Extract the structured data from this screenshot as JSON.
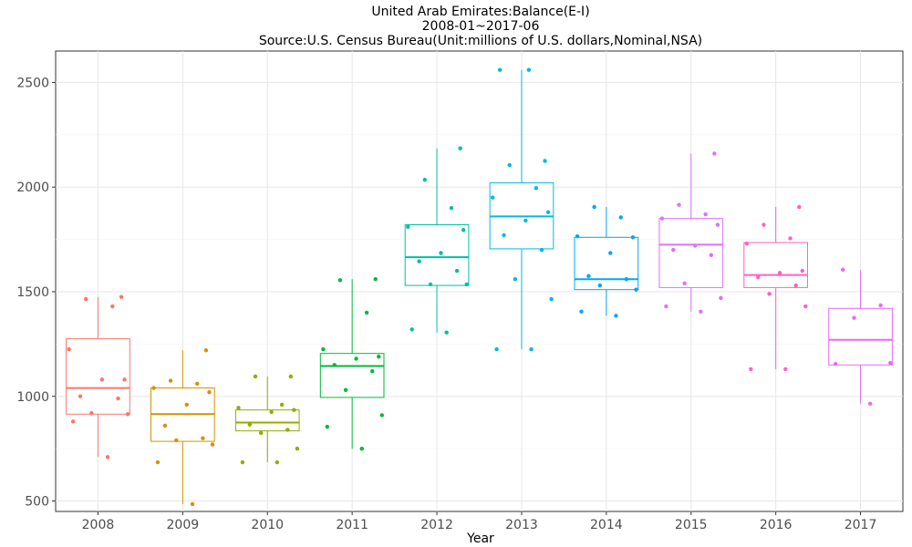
{
  "chart_data": {
    "type": "boxplot",
    "title": "United Arab Emirates:Balance(E-I)",
    "subtitle": "2008-01~2017-06",
    "source": "Source:U.S. Census Bureau(Unit:millions of U.S. dollars,Nominal,NSA)",
    "xlabel": "Year",
    "ylabel": "",
    "ylim": [
      450,
      2650
    ],
    "yticks": [
      500,
      1000,
      1500,
      2000,
      2500
    ],
    "grid": true,
    "legend": "none",
    "categories": [
      "2008",
      "2009",
      "2010",
      "2011",
      "2012",
      "2013",
      "2014",
      "2015",
      "2016",
      "2017"
    ],
    "colors": [
      "#F8766D",
      "#D39200",
      "#93AA00",
      "#00BA38",
      "#00C19F",
      "#00B9E3",
      "#00A6FF",
      "#DB72FB",
      "#FF61C3",
      "#E76BF3"
    ],
    "boxes": [
      {
        "category": "2008",
        "min": 710,
        "q1": 915,
        "median": 1040,
        "q3": 1275,
        "max": 1475,
        "points": [
          710,
          880,
          915,
          920,
          990,
          1000,
          1080,
          1080,
          1225,
          1430,
          1465,
          1475
        ]
      },
      {
        "category": "2009",
        "min": 485,
        "q1": 785,
        "median": 915,
        "q3": 1040,
        "max": 1220,
        "points": [
          485,
          685,
          770,
          790,
          800,
          860,
          960,
          1020,
          1040,
          1060,
          1075,
          1220
        ]
      },
      {
        "category": "2010",
        "min": 685,
        "q1": 835,
        "median": 875,
        "q3": 935,
        "max": 1095,
        "points": [
          685,
          685,
          750,
          825,
          840,
          865,
          925,
          935,
          945,
          960,
          1095,
          1095
        ]
      },
      {
        "category": "2011",
        "min": 750,
        "q1": 995,
        "median": 1145,
        "q3": 1205,
        "max": 1560,
        "points": [
          750,
          855,
          910,
          1030,
          1120,
          1150,
          1180,
          1190,
          1225,
          1400,
          1555,
          1560
        ]
      },
      {
        "category": "2012",
        "min": 1305,
        "q1": 1530,
        "median": 1665,
        "q3": 1820,
        "max": 2185,
        "points": [
          1305,
          1320,
          1535,
          1535,
          1600,
          1645,
          1685,
          1795,
          1810,
          1900,
          2035,
          2185
        ]
      },
      {
        "category": "2013",
        "min": 1225,
        "q1": 1705,
        "median": 1860,
        "q3": 2020,
        "max": 2560,
        "points": [
          1225,
          1225,
          1465,
          1560,
          1700,
          1770,
          1840,
          1880,
          1950,
          1995,
          2105,
          2125,
          2560,
          2560
        ]
      },
      {
        "category": "2014",
        "min": 1385,
        "q1": 1510,
        "median": 1560,
        "q3": 1760,
        "max": 1905,
        "points": [
          1385,
          1405,
          1510,
          1530,
          1560,
          1575,
          1685,
          1760,
          1765,
          1855,
          1905
        ]
      },
      {
        "category": "2015",
        "min": 1405,
        "q1": 1520,
        "median": 1725,
        "q3": 1850,
        "max": 2160,
        "points": [
          1405,
          1430,
          1470,
          1540,
          1675,
          1700,
          1720,
          1820,
          1850,
          1870,
          1915,
          2160
        ]
      },
      {
        "category": "2016",
        "min": 1130,
        "q1": 1520,
        "median": 1580,
        "q3": 1735,
        "max": 1905,
        "points": [
          1130,
          1130,
          1430,
          1490,
          1530,
          1570,
          1590,
          1600,
          1730,
          1755,
          1820,
          1905
        ]
      },
      {
        "category": "2017",
        "min": 965,
        "q1": 1150,
        "median": 1270,
        "q3": 1420,
        "max": 1605,
        "points": [
          965,
          1155,
          1160,
          1375,
          1435,
          1605
        ]
      }
    ]
  }
}
